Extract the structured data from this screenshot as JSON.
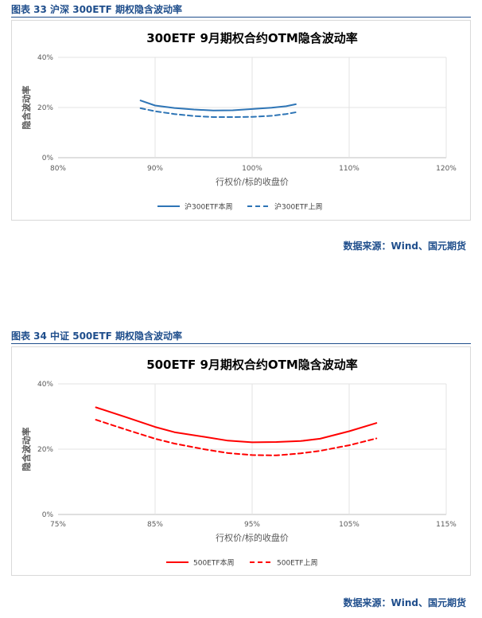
{
  "figures": [
    {
      "caption": "图表 33 沪深 300ETF 期权隐含波动率",
      "source": "数据来源：Wind、国元期货"
    },
    {
      "caption": "图表 34 中证 500ETF 期权隐含波动率",
      "source": "数据来源：Wind、国元期货"
    }
  ],
  "chart_data": [
    {
      "type": "line",
      "title": "300ETF 9月期权合约OTM隐含波动率",
      "xlabel": "行权价/标的收盘价",
      "ylabel": "隐含波动率",
      "xlim": [
        0.8,
        1.2
      ],
      "ylim": [
        0,
        0.4
      ],
      "xticks": [
        0.8,
        0.9,
        1.0,
        1.1,
        1.2
      ],
      "xtick_labels": [
        "80%",
        "90%",
        "100%",
        "110%",
        "120%"
      ],
      "yticks": [
        0,
        0.2,
        0.4
      ],
      "ytick_labels": [
        "0%",
        "20%",
        "40%"
      ],
      "grid": true,
      "legend": "bottom",
      "series": [
        {
          "name": "沪300ETF本周",
          "style": "solid",
          "color": "#2e75b6",
          "x": [
            0.885,
            0.9,
            0.92,
            0.94,
            0.96,
            0.98,
            1.0,
            1.02,
            1.035,
            1.045
          ],
          "y": [
            0.228,
            0.208,
            0.198,
            0.192,
            0.188,
            0.189,
            0.194,
            0.199,
            0.205,
            0.213
          ]
        },
        {
          "name": "沪300ETF上周",
          "style": "dashed",
          "color": "#2e75b6",
          "x": [
            0.885,
            0.9,
            0.92,
            0.94,
            0.96,
            0.98,
            1.0,
            1.02,
            1.035,
            1.045
          ],
          "y": [
            0.197,
            0.185,
            0.174,
            0.166,
            0.162,
            0.162,
            0.163,
            0.167,
            0.174,
            0.181
          ]
        }
      ]
    },
    {
      "type": "line",
      "title": "500ETF 9月期权合约OTM隐含波动率",
      "xlabel": "行权价/标的收盘价",
      "ylabel": "隐含波动率",
      "xlim": [
        0.75,
        1.15
      ],
      "ylim": [
        0,
        0.4
      ],
      "xticks": [
        0.75,
        0.85,
        0.95,
        1.05,
        1.15
      ],
      "xtick_labels": [
        "75%",
        "85%",
        "95%",
        "105%",
        "115%"
      ],
      "yticks": [
        0,
        0.2,
        0.4
      ],
      "ytick_labels": [
        "0%",
        "20%",
        "40%"
      ],
      "grid": true,
      "legend": "bottom",
      "series": [
        {
          "name": "500ETF本周",
          "style": "solid",
          "color": "#ff0000",
          "x": [
            0.789,
            0.82,
            0.85,
            0.87,
            0.9,
            0.925,
            0.95,
            0.975,
            1.0,
            1.02,
            1.05,
            1.078
          ],
          "y": [
            0.328,
            0.298,
            0.268,
            0.252,
            0.238,
            0.226,
            0.221,
            0.222,
            0.225,
            0.232,
            0.255,
            0.28
          ]
        },
        {
          "name": "500ETF上周",
          "style": "dashed",
          "color": "#ff0000",
          "x": [
            0.789,
            0.82,
            0.85,
            0.87,
            0.9,
            0.925,
            0.95,
            0.975,
            1.0,
            1.02,
            1.05,
            1.078
          ],
          "y": [
            0.29,
            0.26,
            0.232,
            0.217,
            0.2,
            0.188,
            0.182,
            0.181,
            0.187,
            0.195,
            0.212,
            0.233
          ]
        }
      ]
    }
  ]
}
